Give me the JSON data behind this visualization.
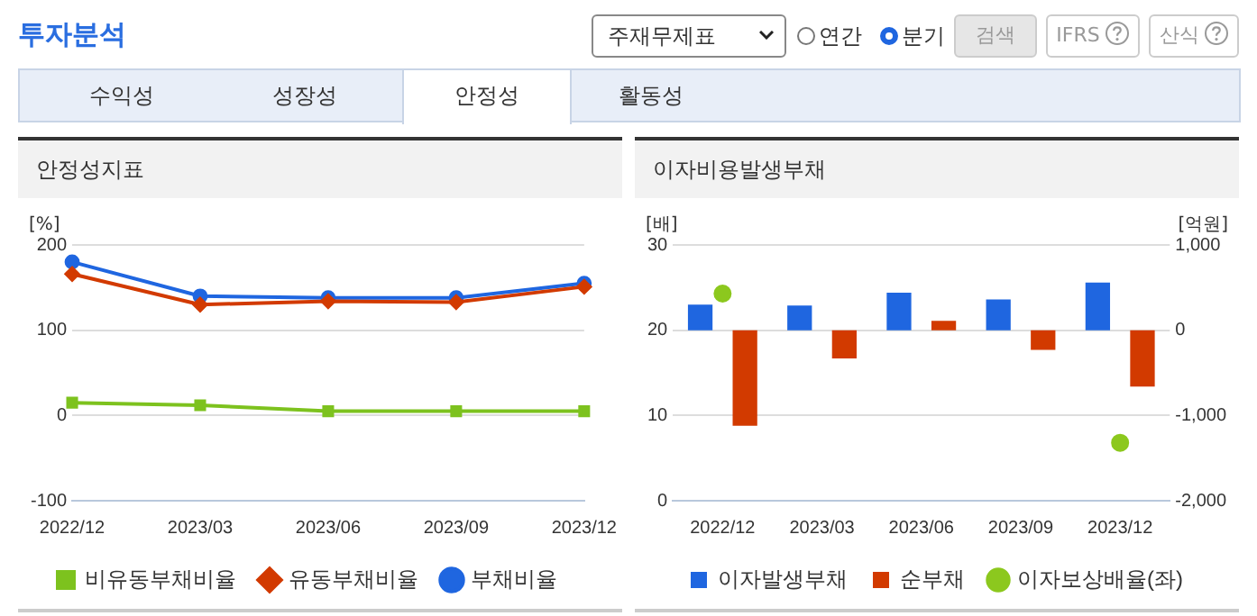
{
  "chart_data": [
    {
      "type": "other",
      "title": "투자분석",
      "annotations": [
        "주재무제표",
        "연간",
        "분기",
        "검색",
        "IFRS",
        "산식",
        "수익성",
        "성장성",
        "안정성",
        "활동성"
      ]
    },
    {
      "type": "line",
      "title": "안정성지표",
      "ylabel": "[%]",
      "categories": [
        "2022/12",
        "2023/03",
        "2023/06",
        "2023/09",
        "2023/12"
      ],
      "series": [
        {
          "name": "부채비율",
          "color": "#1f66e0",
          "marker": "circle",
          "values": [
            180,
            140,
            138,
            138,
            155
          ]
        },
        {
          "name": "유동부채비율",
          "color": "#d23a00",
          "marker": "diamond",
          "values": [
            166,
            130,
            134,
            133,
            151
          ]
        },
        {
          "name": "비유동부채비율",
          "color": "#7dc21e",
          "marker": "square",
          "values": [
            15,
            12,
            5,
            5,
            5
          ]
        }
      ],
      "ylim": [
        -100,
        200
      ],
      "yticks": [
        -100,
        0,
        100,
        200
      ],
      "grid": "y",
      "legend": "bottom"
    },
    {
      "type": "bar",
      "title": "이자비용발생부채",
      "ylabel": "[배]",
      "y2label": "[억원]",
      "categories": [
        "2022/12",
        "2023/03",
        "2023/06",
        "2023/09",
        "2023/12"
      ],
      "series": [
        {
          "name": "이자발생부채",
          "color": "#1f66e0",
          "axis": "y2",
          "values": [
            300,
            290,
            440,
            360,
            560
          ]
        },
        {
          "name": "순부채",
          "color": "#d23a00",
          "axis": "y2",
          "values": [
            -1120,
            -330,
            110,
            -230,
            -660
          ]
        },
        {
          "name": "이자보상배율(좌)",
          "type": "scatter",
          "marker": "circle",
          "color": "#8cc81e",
          "values": [
            24.3,
            null,
            null,
            null,
            6.8
          ]
        }
      ],
      "ylim": [
        0,
        30
      ],
      "yticks": [
        0,
        10,
        20,
        30
      ],
      "y2lim": [
        -2000,
        1000
      ],
      "y2ticks": [
        {
          "value": -2000,
          "label": "-2,000"
        },
        {
          "value": -1000,
          "label": "-1,000"
        },
        0,
        {
          "value": 1000,
          "label": "1,000"
        }
      ],
      "grid": "y",
      "legend": "bottom"
    }
  ]
}
